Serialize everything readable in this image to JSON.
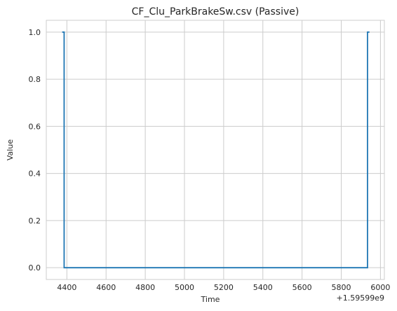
{
  "chart_data": {
    "type": "line",
    "title": "CF_Clu_ParkBrakeSw.csv (Passive)",
    "xlabel": "Time",
    "ylabel": "Value",
    "x_offset_label": "+1.59599e9",
    "xlim": [
      4295,
      6020
    ],
    "ylim": [
      -0.05,
      1.05
    ],
    "xticks": [
      4400,
      4600,
      4800,
      5000,
      5200,
      5400,
      5600,
      5800,
      6000
    ],
    "yticks": [
      0.0,
      0.2,
      0.4,
      0.6,
      0.8,
      1.0
    ],
    "ytick_labels": [
      "0.0",
      "0.2",
      "0.4",
      "0.6",
      "0.8",
      "1.0"
    ],
    "grid": true,
    "line_color": "#1f77b4",
    "series": [
      {
        "x": [
          4376,
          4386,
          4386,
          5934,
          5934,
          5944
        ],
        "y": [
          1,
          1,
          0,
          0,
          1,
          1
        ]
      }
    ]
  }
}
